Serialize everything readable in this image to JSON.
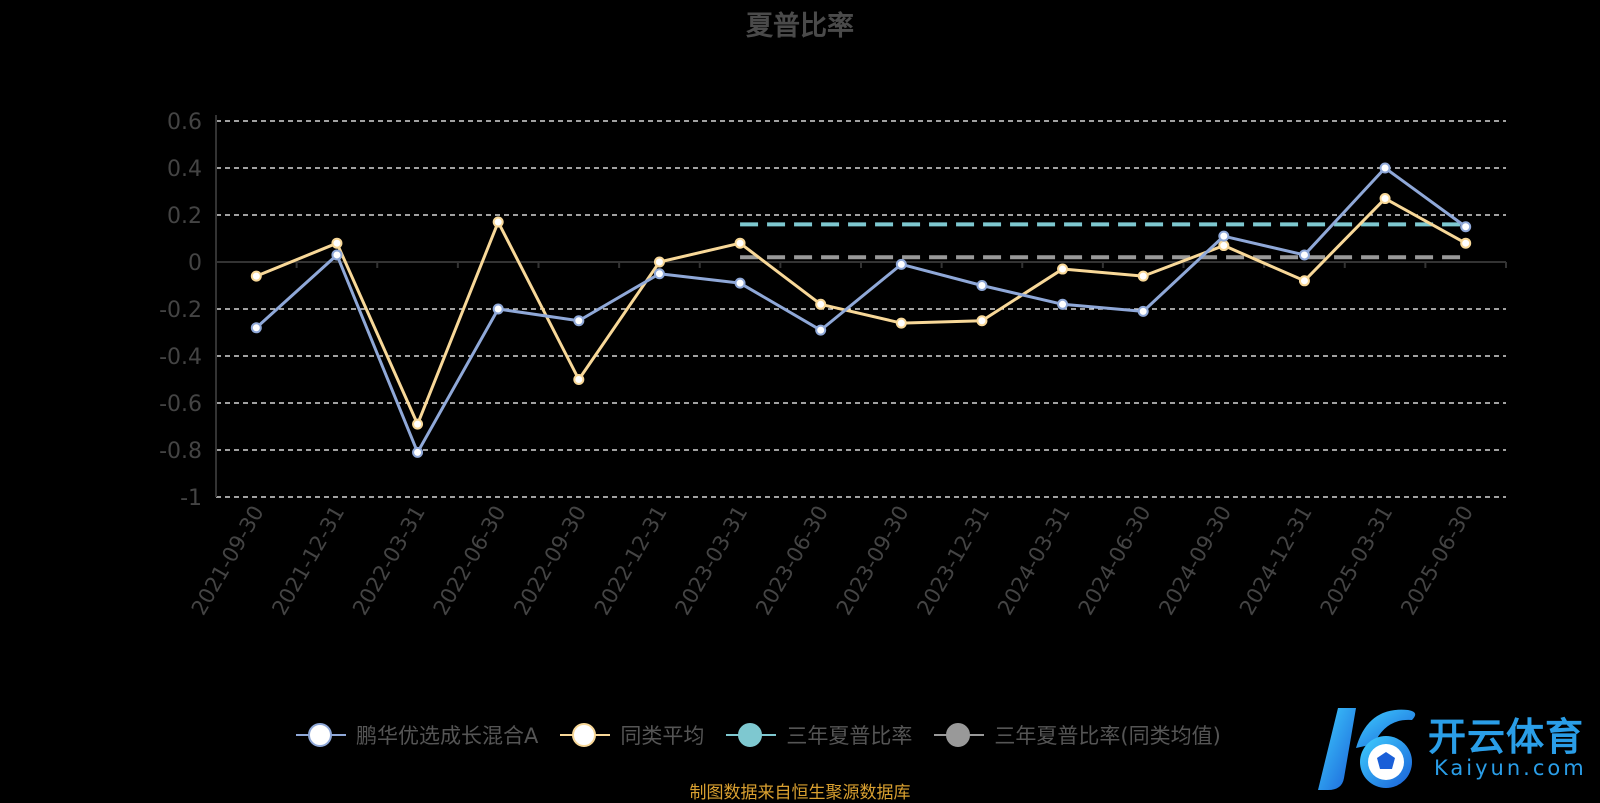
{
  "chart_data": {
    "type": "line",
    "title": "夏普比率",
    "categories": [
      "2021-09-30",
      "2021-12-31",
      "2022-03-31",
      "2022-06-30",
      "2022-09-30",
      "2022-12-31",
      "2023-03-31",
      "2023-06-30",
      "2023-09-30",
      "2023-12-31",
      "2024-03-31",
      "2024-06-30",
      "2024-09-30",
      "2024-12-31",
      "2025-03-31",
      "2025-06-30"
    ],
    "series": [
      {
        "name": "鹏华优选成长混合A",
        "values": [
          -0.28,
          0.03,
          -0.81,
          -0.2,
          -0.25,
          -0.05,
          -0.09,
          -0.29,
          -0.01,
          -0.1,
          -0.18,
          -0.21,
          0.11,
          0.03,
          0.4,
          0.15
        ],
        "color": "#8fa8d8",
        "marker_color": "#ffffff"
      },
      {
        "name": "同类平均",
        "values": [
          -0.06,
          0.08,
          -0.69,
          0.17,
          -0.5,
          0.0,
          0.08,
          -0.18,
          -0.26,
          -0.25,
          -0.03,
          -0.06,
          0.07,
          -0.08,
          0.27,
          0.08
        ],
        "color": "#f8d898",
        "marker_color": "#ffffff"
      },
      {
        "name": "三年夏普比率",
        "values": [
          null,
          null,
          null,
          null,
          null,
          null,
          0.16,
          0.16,
          0.16,
          0.16,
          0.16,
          0.16,
          0.16,
          0.16,
          0.16,
          0.16
        ],
        "color": "#7ec8d0",
        "style": "dashed"
      },
      {
        "name": "三年夏普比率(同类均值)",
        "values": [
          null,
          null,
          null,
          null,
          null,
          null,
          0.02,
          0.02,
          0.02,
          0.02,
          0.02,
          0.02,
          0.02,
          0.02,
          0.02,
          0.02
        ],
        "color": "#999999",
        "style": "dashed"
      }
    ],
    "y_ticks": [
      "0.6",
      "0.4",
      "0.2",
      "0",
      "-0.2",
      "-0.4",
      "-0.6",
      "-0.8",
      "-1"
    ],
    "ylim": [
      -1,
      0.6
    ],
    "grid": true,
    "legend_position": "bottom"
  },
  "legend_items": [
    {
      "label": "鹏华优选成长混合A",
      "line_color": "#8fa8d8",
      "dot_color": "#ffffff",
      "dot_border": "#8fa8d8"
    },
    {
      "label": "同类平均",
      "line_color": "#f8d898",
      "dot_color": "#ffffff",
      "dot_border": "#f8d898"
    },
    {
      "label": "三年夏普比率",
      "line_color": "#7ec8d0",
      "dot_color": "#7ec8d0",
      "dot_border": "#7ec8d0"
    },
    {
      "label": "三年夏普比率(同类均值)",
      "line_color": "#999999",
      "dot_color": "#999999",
      "dot_border": "#999999"
    }
  ],
  "source_text": "制图数据来自恒生聚源数据库",
  "source_color": "#d9a030",
  "logo": {
    "name_cn": "开云体育",
    "name_en": "Kaiyun.com",
    "color": "#2a9ee8"
  },
  "colors": {
    "grid": "#ffffff",
    "axis": "#333333",
    "tick_label": "#444444"
  }
}
